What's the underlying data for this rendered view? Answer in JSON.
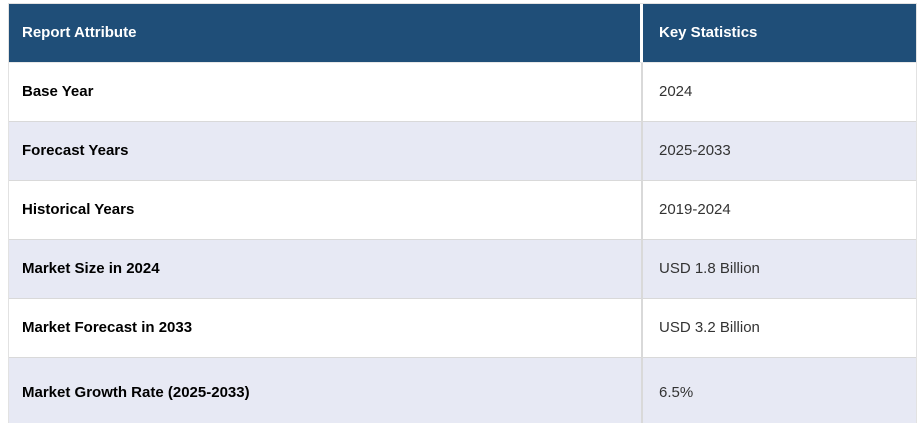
{
  "chart_data": {
    "type": "table",
    "title": "Report key statistics table",
    "columns": [
      "Report Attribute",
      "Key Statistics"
    ],
    "rows": [
      [
        "Base Year",
        "2024"
      ],
      [
        "Forecast Years",
        "2025-2033"
      ],
      [
        "Historical Years",
        "2019-2024"
      ],
      [
        "Market Size in 2024",
        "USD 1.8 Billion"
      ],
      [
        "Market Forecast in 2033",
        "USD 3.2 Billion"
      ],
      [
        "Market Growth Rate (2025-2033)",
        "6.5%"
      ]
    ]
  },
  "colors": {
    "header_bg": "#1f4e78",
    "header_text": "#ffffff",
    "row_alt_bg": "#e7e9f4",
    "row_bg": "#ffffff",
    "divider": "#d9d9d9",
    "attribute_text": "#000000",
    "value_text": "#333333"
  }
}
